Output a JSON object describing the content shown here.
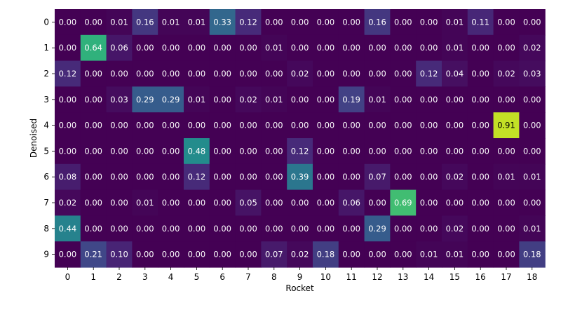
{
  "chart_data": {
    "type": "heatmap",
    "title": "",
    "xlabel": "Rocket",
    "ylabel": "Denoised",
    "x_categories": [
      "0",
      "1",
      "2",
      "3",
      "4",
      "5",
      "6",
      "7",
      "8",
      "9",
      "10",
      "11",
      "12",
      "13",
      "14",
      "15",
      "16",
      "17",
      "18"
    ],
    "y_categories": [
      "0",
      "1",
      "2",
      "3",
      "4",
      "5",
      "6",
      "7",
      "8",
      "9"
    ],
    "value_range": [
      0,
      1
    ],
    "colormap": "viridis",
    "values": [
      [
        "0.00",
        "0.00",
        "0.01",
        "0.16",
        "0.01",
        "0.01",
        "0.33",
        "0.12",
        "0.00",
        "0.00",
        "0.00",
        "0.00",
        "0.16",
        "0.00",
        "0.00",
        "0.01",
        "0.11",
        "0.00",
        "0.00"
      ],
      [
        "0.00",
        "0.64",
        "0.06",
        "0.00",
        "0.00",
        "0.00",
        "0.00",
        "0.00",
        "0.01",
        "0.00",
        "0.00",
        "0.00",
        "0.00",
        "0.00",
        "0.00",
        "0.01",
        "0.00",
        "0.00",
        "0.02"
      ],
      [
        "0.12",
        "0.00",
        "0.00",
        "0.00",
        "0.00",
        "0.00",
        "0.00",
        "0.00",
        "0.00",
        "0.02",
        "0.00",
        "0.00",
        "0.00",
        "0.00",
        "0.12",
        "0.04",
        "0.00",
        "0.02",
        "0.03"
      ],
      [
        "0.00",
        "0.00",
        "0.03",
        "0.29",
        "0.29",
        "0.01",
        "0.00",
        "0.02",
        "0.01",
        "0.00",
        "0.00",
        "0.19",
        "0.01",
        "0.00",
        "0.00",
        "0.00",
        "0.00",
        "0.00",
        "0.00"
      ],
      [
        "0.00",
        "0.00",
        "0.00",
        "0.00",
        "0.00",
        "0.00",
        "0.00",
        "0.00",
        "0.00",
        "0.00",
        "0.00",
        "0.00",
        "0.00",
        "0.00",
        "0.00",
        "0.00",
        "0.00",
        "0.91",
        "0.00"
      ],
      [
        "0.00",
        "0.00",
        "0.00",
        "0.00",
        "0.00",
        "0.48",
        "0.00",
        "0.00",
        "0.00",
        "0.12",
        "0.00",
        "0.00",
        "0.00",
        "0.00",
        "0.00",
        "0.00",
        "0.00",
        "0.00",
        "0.00"
      ],
      [
        "0.08",
        "0.00",
        "0.00",
        "0.00",
        "0.00",
        "0.12",
        "0.00",
        "0.00",
        "0.00",
        "0.39",
        "0.00",
        "0.00",
        "0.07",
        "0.00",
        "0.00",
        "0.02",
        "0.00",
        "0.01",
        "0.01"
      ],
      [
        "0.02",
        "0.00",
        "0.00",
        "0.01",
        "0.00",
        "0.00",
        "0.00",
        "0.05",
        "0.00",
        "0.00",
        "0.00",
        "0.06",
        "0.00",
        "0.69",
        "0.00",
        "0.00",
        "0.00",
        "0.00",
        "0.00"
      ],
      [
        "0.44",
        "0.00",
        "0.00",
        "0.00",
        "0.00",
        "0.00",
        "0.00",
        "0.00",
        "0.00",
        "0.00",
        "0.00",
        "0.00",
        "0.29",
        "0.00",
        "0.00",
        "0.02",
        "0.00",
        "0.00",
        "0.01"
      ],
      [
        "0.00",
        "0.21",
        "0.10",
        "0.00",
        "0.00",
        "0.00",
        "0.00",
        "0.00",
        "0.07",
        "0.02",
        "0.18",
        "0.00",
        "0.00",
        "0.00",
        "0.01",
        "0.01",
        "0.00",
        "0.00",
        "0.18"
      ]
    ]
  }
}
